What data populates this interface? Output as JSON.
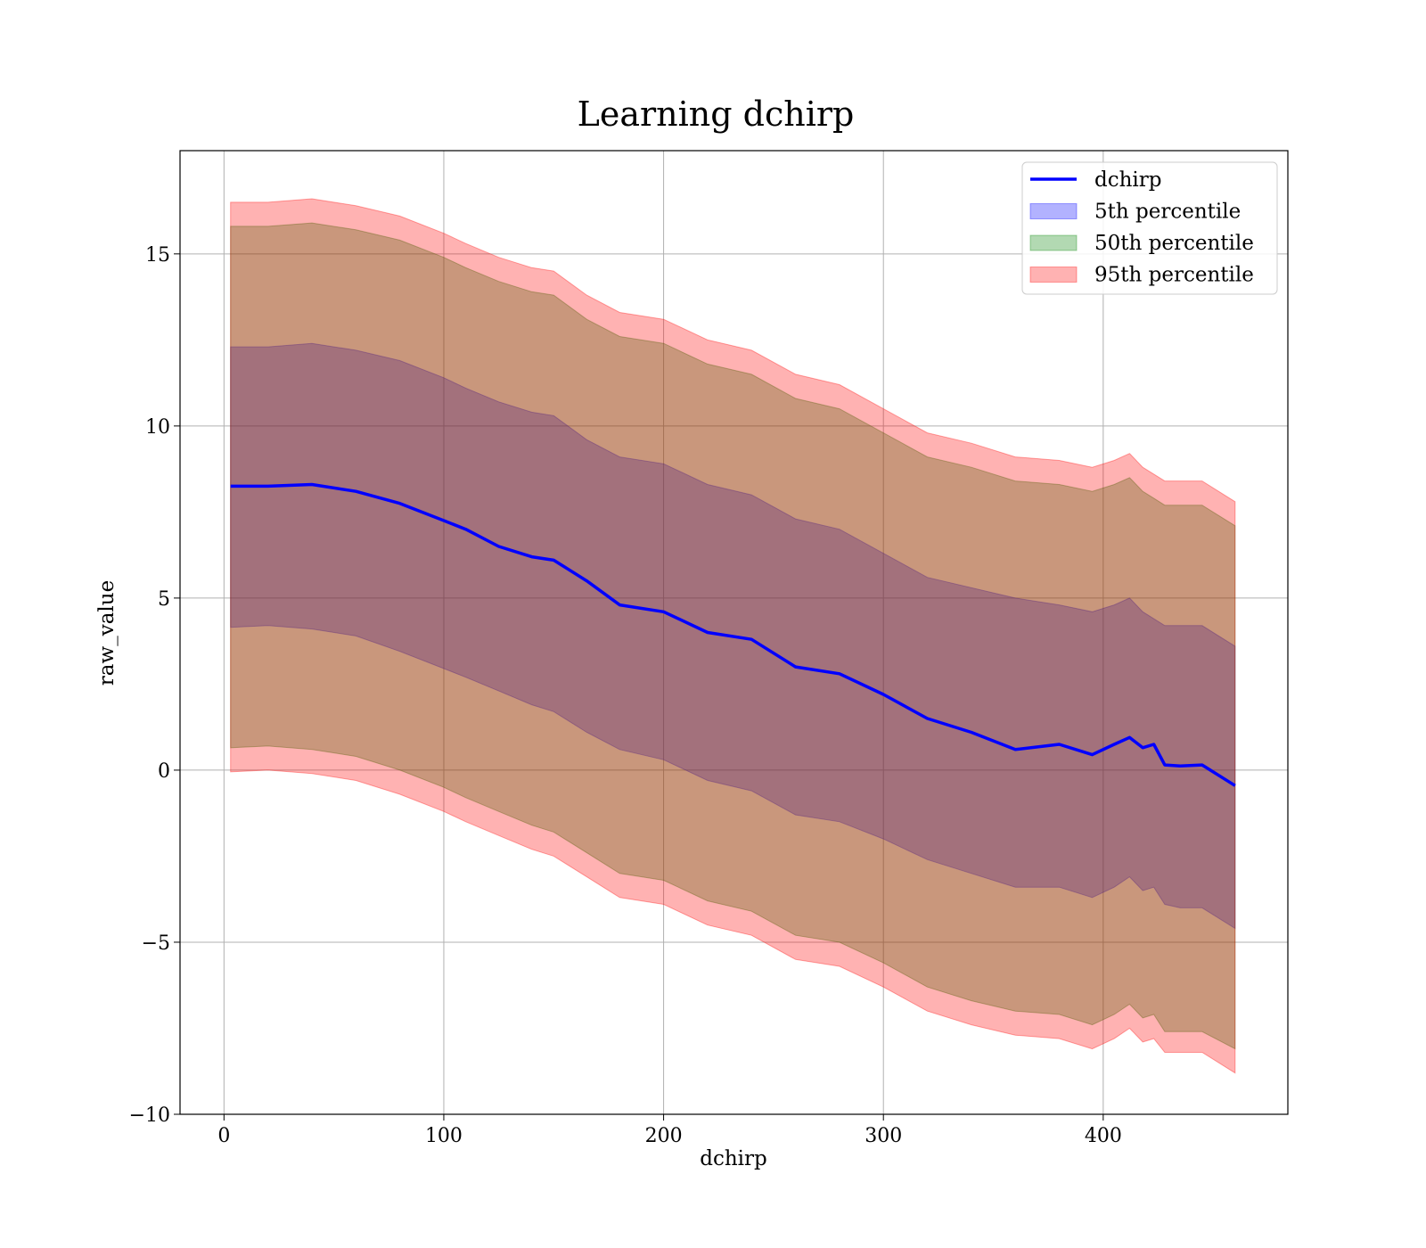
{
  "chart_data": {
    "type": "area",
    "title": "Learning dchirp",
    "xlabel": "dchirp",
    "ylabel": "raw_value",
    "xlim": [
      -20,
      484
    ],
    "ylim": [
      -10,
      18
    ],
    "xticks": [
      0,
      100,
      200,
      300,
      400
    ],
    "xtick_labels": [
      "0",
      "100",
      "200",
      "300",
      "400"
    ],
    "yticks": [
      -10,
      -5,
      0,
      5,
      10,
      15
    ],
    "ytick_labels": [
      "−10",
      "−5",
      "0",
      "5",
      "10",
      "15"
    ],
    "grid": true,
    "legend_placement": "top-right",
    "x": [
      3,
      20,
      40,
      60,
      80,
      100,
      110,
      125,
      140,
      150,
      165,
      180,
      200,
      220,
      240,
      260,
      280,
      300,
      320,
      340,
      360,
      380,
      395,
      405,
      412,
      418,
      423,
      428,
      435,
      445,
      460
    ],
    "series": [
      {
        "name": "dchirp",
        "kind": "line",
        "color": "#0000ff",
        "values": [
          8.25,
          8.25,
          8.3,
          8.1,
          7.75,
          7.25,
          7.0,
          6.5,
          6.2,
          6.1,
          5.5,
          4.8,
          4.6,
          4.0,
          3.8,
          3.0,
          2.8,
          2.2,
          1.5,
          1.1,
          0.6,
          0.75,
          0.45,
          0.75,
          0.95,
          0.65,
          0.75,
          0.15,
          0.12,
          0.15,
          -0.45
        ]
      },
      {
        "name": "5th percentile",
        "kind": "band",
        "color": "#0000ff",
        "lower": [
          4.15,
          4.2,
          4.1,
          3.9,
          3.45,
          2.95,
          2.7,
          2.3,
          1.9,
          1.7,
          1.1,
          0.6,
          0.3,
          -0.3,
          -0.6,
          -1.3,
          -1.5,
          -2.0,
          -2.6,
          -3.0,
          -3.4,
          -3.4,
          -3.7,
          -3.4,
          -3.1,
          -3.5,
          -3.4,
          -3.9,
          -4.0,
          -4.0,
          -4.6
        ],
        "upper": [
          12.3,
          12.3,
          12.4,
          12.2,
          11.9,
          11.4,
          11.1,
          10.7,
          10.4,
          10.3,
          9.6,
          9.1,
          8.9,
          8.3,
          8.0,
          7.3,
          7.0,
          6.3,
          5.6,
          5.3,
          5.0,
          4.8,
          4.6,
          4.8,
          5.0,
          4.6,
          4.4,
          4.2,
          4.2,
          4.2,
          3.6
        ]
      },
      {
        "name": "50th percentile",
        "kind": "band",
        "color": "#008000",
        "lower": [
          0.65,
          0.7,
          0.6,
          0.4,
          0.0,
          -0.5,
          -0.8,
          -1.2,
          -1.6,
          -1.8,
          -2.4,
          -3.0,
          -3.2,
          -3.8,
          -4.1,
          -4.8,
          -5.0,
          -5.6,
          -6.3,
          -6.7,
          -7.0,
          -7.1,
          -7.4,
          -7.1,
          -6.8,
          -7.2,
          -7.1,
          -7.6,
          -7.6,
          -7.6,
          -8.1
        ],
        "upper": [
          15.8,
          15.8,
          15.9,
          15.7,
          15.4,
          14.9,
          14.6,
          14.2,
          13.9,
          13.8,
          13.1,
          12.6,
          12.4,
          11.8,
          11.5,
          10.8,
          10.5,
          9.8,
          9.1,
          8.8,
          8.4,
          8.3,
          8.1,
          8.3,
          8.5,
          8.1,
          7.9,
          7.7,
          7.7,
          7.7,
          7.1
        ]
      },
      {
        "name": "95th percentile",
        "kind": "band",
        "color": "#ff0000",
        "lower": [
          -0.05,
          0.0,
          -0.1,
          -0.3,
          -0.7,
          -1.2,
          -1.5,
          -1.9,
          -2.3,
          -2.5,
          -3.1,
          -3.7,
          -3.9,
          -4.5,
          -4.8,
          -5.5,
          -5.7,
          -6.3,
          -7.0,
          -7.4,
          -7.7,
          -7.8,
          -8.1,
          -7.8,
          -7.5,
          -7.9,
          -7.8,
          -8.2,
          -8.2,
          -8.2,
          -8.8
        ],
        "upper": [
          16.5,
          16.5,
          16.6,
          16.4,
          16.1,
          15.6,
          15.3,
          14.9,
          14.6,
          14.5,
          13.8,
          13.3,
          13.1,
          12.5,
          12.2,
          11.5,
          11.2,
          10.5,
          9.8,
          9.5,
          9.1,
          9.0,
          8.8,
          9.0,
          9.2,
          8.8,
          8.6,
          8.4,
          8.4,
          8.4,
          7.8
        ]
      }
    ]
  }
}
